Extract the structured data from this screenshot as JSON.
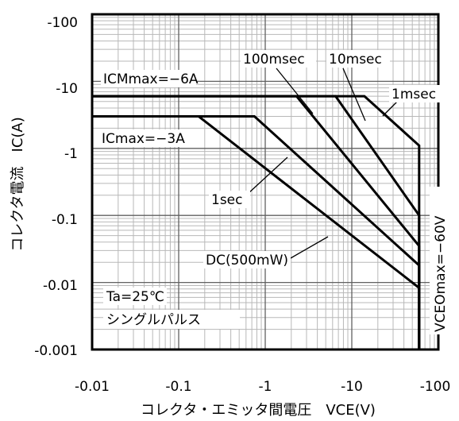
{
  "chart_data": {
    "type": "line",
    "title": "",
    "xlabel": "コレクタ・エミッタ間電圧　VCE(V)",
    "ylabel": "コレクタ電流　IC(A)",
    "x_scale": "log",
    "y_scale": "log",
    "xlim": [
      -0.01,
      -100
    ],
    "ylim": [
      -0.001,
      -100
    ],
    "x_ticks": [
      "-0.01",
      "-0.1",
      "-1",
      "-10",
      "-100"
    ],
    "y_ticks": [
      "-100",
      "-10",
      "-1",
      "-0.1",
      "-0.01",
      "-0.001"
    ],
    "grid": true,
    "series": [
      {
        "name": "1msec",
        "x": [
          -0.01,
          -14,
          -60,
          -60
        ],
        "y": [
          -6,
          -6,
          -1.1,
          -0.001
        ]
      },
      {
        "name": "10msec",
        "x": [
          -0.01,
          -6.5,
          -60,
          -60
        ],
        "y": [
          -6,
          -6,
          -0.1,
          -0.001
        ]
      },
      {
        "name": "100msec",
        "x": [
          -0.01,
          -2.3,
          -60,
          -60
        ],
        "y": [
          -6,
          -6,
          -0.035,
          -0.001
        ]
      },
      {
        "name": "1sec",
        "x": [
          -0.01,
          -0.75,
          -60,
          -60
        ],
        "y": [
          -3,
          -3,
          -0.018,
          -0.001
        ]
      },
      {
        "name": "DC(500mW)",
        "x": [
          -0.01,
          -0.17,
          -60,
          -60
        ],
        "y": [
          -3,
          -3,
          -0.0083,
          -0.001
        ]
      }
    ],
    "annotations": {
      "icm": "ICMmax=−6A",
      "ic": "ICmax=−3A",
      "vceo": "VCEOmax=−60V",
      "cond1": "Ta=25℃",
      "cond2": "シングルパルス",
      "l1ms": "1msec",
      "l10ms": "10msec",
      "l100ms": "100msec",
      "l1s": "1sec",
      "ldc": "DC(500mW)"
    }
  }
}
